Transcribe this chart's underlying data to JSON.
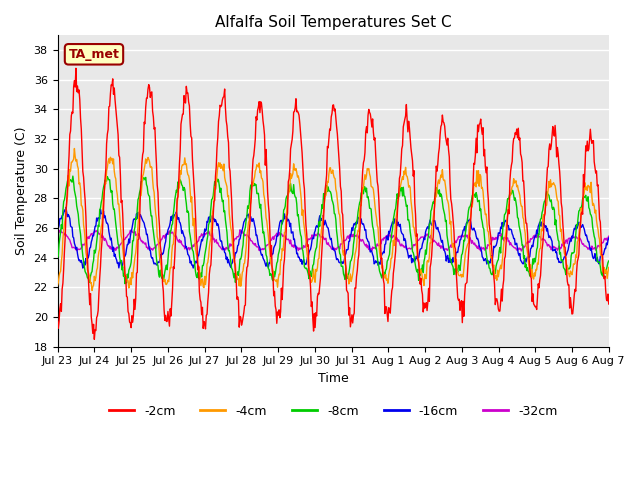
{
  "title": "Alfalfa Soil Temperatures Set C",
  "xlabel": "Time",
  "ylabel": "Soil Temperature (C)",
  "ylim": [
    18,
    39
  ],
  "yticks": [
    18,
    20,
    22,
    24,
    26,
    28,
    30,
    32,
    34,
    36,
    38
  ],
  "colors": {
    "-2cm": "#ff0000",
    "-4cm": "#ff9900",
    "-8cm": "#00cc00",
    "-16cm": "#0000ee",
    "-32cm": "#cc00cc"
  },
  "annotation_text": "TA_met",
  "annotation_color": "#990000",
  "annotation_bg": "#ffffc0",
  "bg_color": "#e8e8e8",
  "fig_bg": "#ffffff",
  "n_days": 15,
  "samples_per_day": 48,
  "legend_fontsize": 9,
  "tick_fontsize": 8,
  "title_fontsize": 11,
  "label_fontsize": 9
}
